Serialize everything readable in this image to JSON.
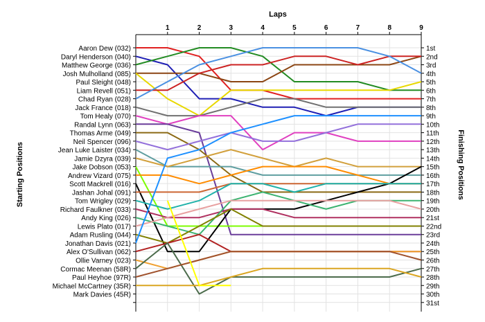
{
  "chart_data": {
    "type": "line",
    "title": "",
    "xlabel": "Laps",
    "ylabel_left": "Starting Positions",
    "ylabel_right": "Finishing Positions",
    "x": [
      0,
      1,
      2,
      3,
      4,
      5,
      6,
      7,
      8,
      9
    ],
    "x_tick_labels": [
      "1",
      "2",
      "3",
      "4",
      "5",
      "6",
      "7",
      "8",
      "9"
    ],
    "ylim": [
      1,
      31
    ],
    "y_inverted": true,
    "grid": true,
    "finish_labels": [
      "1st",
      "2nd",
      "3rd",
      "4th",
      "5th",
      "6th",
      "7th",
      "8th",
      "9th",
      "10th",
      "11th",
      "12th",
      "13th",
      "14th",
      "15th",
      "16th",
      "17th",
      "18th",
      "19th",
      "20th",
      "21st",
      "22nd",
      "23rd",
      "24th",
      "25th",
      "26th",
      "27th",
      "28th",
      "29th",
      "30th",
      "31st"
    ],
    "series": [
      {
        "name": "Aaron Dew (032)",
        "color": "#e02020",
        "values": [
          1,
          1,
          2,
          6,
          6,
          7,
          7,
          7,
          7,
          7
        ]
      },
      {
        "name": "Daryl Henderson (040)",
        "color": "#1f1fb4",
        "values": [
          2,
          3,
          7,
          7,
          8,
          8,
          9,
          8,
          8,
          8
        ]
      },
      {
        "name": "Matthew George (036)",
        "color": "#228b22",
        "values": [
          3,
          2,
          1,
          1,
          2,
          5,
          5,
          5,
          6,
          6
        ]
      },
      {
        "name": "Josh Mulholland (085)",
        "color": "#8b4513",
        "values": [
          4,
          4,
          4,
          5,
          5,
          3,
          3,
          3,
          3,
          2
        ]
      },
      {
        "name": "Paul Sleight (048)",
        "color": "#e8d800",
        "values": [
          4,
          7,
          9,
          6,
          6,
          6,
          6,
          6,
          6,
          5
        ]
      },
      {
        "name": "Liam Revell (051)",
        "color": "#cc2222",
        "values": [
          6,
          6,
          4,
          3,
          3,
          2,
          2,
          3,
          2,
          2
        ]
      },
      {
        "name": "Chad Ryan (028)",
        "color": "#4a90e2",
        "values": [
          7,
          5,
          3,
          2,
          1,
          1,
          1,
          1,
          2,
          4
        ]
      },
      {
        "name": "Jack France (018)",
        "color": "#707070",
        "values": [
          8,
          9,
          9,
          8,
          7,
          7,
          8,
          8,
          8,
          8
        ]
      },
      {
        "name": "Tom Healy (070)",
        "color": "#e040c0",
        "values": [
          9,
          10,
          9,
          9,
          13,
          11,
          11,
          12,
          12,
          12
        ]
      },
      {
        "name": "Randal Lynn (063)",
        "color": "#6a3d9a",
        "values": [
          10,
          10,
          11,
          23,
          23,
          23,
          23,
          23,
          23,
          23
        ]
      },
      {
        "name": "Thomas Arme (049)",
        "color": "#8b6914",
        "values": [
          11,
          11,
          13,
          16,
          18,
          18,
          18,
          18,
          18,
          18
        ]
      },
      {
        "name": "Neil Spencer (096)",
        "color": "#9370db",
        "values": [
          12,
          13,
          12,
          11,
          12,
          12,
          11,
          10,
          10,
          10
        ]
      },
      {
        "name": "Jean Luke Laister (034)",
        "color": "#5f9ea0",
        "values": [
          13,
          15,
          15,
          15,
          16,
          16,
          16,
          16,
          16,
          16
        ]
      },
      {
        "name": "Jamie Dzyra (039)",
        "color": "#d2a03c",
        "values": [
          14,
          15,
          14,
          13,
          14,
          15,
          14,
          15,
          15,
          15
        ]
      },
      {
        "name": "Jake Dobson (053)",
        "color": "#7cfc00",
        "values": [
          15,
          22,
          22,
          22,
          22,
          22,
          22,
          22,
          22,
          22
        ]
      },
      {
        "name": "Andrew Vizard (075)",
        "color": "#ff8c00",
        "values": [
          16,
          16,
          17,
          16,
          15,
          15,
          15,
          16,
          17,
          17
        ]
      },
      {
        "name": "Scott Mackrell (016)",
        "color": "#000000",
        "values": [
          17,
          25,
          25,
          20,
          20,
          20,
          19,
          18,
          17,
          15
        ]
      },
      {
        "name": "Jashan Johal (091)",
        "color": "#cc6633",
        "values": [
          18,
          18,
          18,
          17,
          17,
          17,
          17,
          17,
          17,
          17
        ]
      },
      {
        "name": "Tom Wrigley (029)",
        "color": "#20b2aa",
        "values": [
          19,
          20,
          19,
          17,
          17,
          18,
          17,
          17,
          17,
          17
        ]
      },
      {
        "name": "Richard Faulkner (033)",
        "color": "#b03060",
        "values": [
          20,
          21,
          21,
          20,
          20,
          21,
          21,
          21,
          21,
          21
        ]
      },
      {
        "name": "Andy King (026)",
        "color": "#3cb371",
        "values": [
          21,
          22,
          23,
          19,
          18,
          19,
          20,
          19,
          19,
          19
        ]
      },
      {
        "name": "Lewis Plato (017)",
        "color": "#e8a0a0",
        "values": [
          22,
          21,
          20,
          19,
          19,
          19,
          19,
          19,
          19,
          20
        ]
      },
      {
        "name": "Adam Rusling (044)",
        "color": "#808000",
        "values": [
          23,
          24,
          22,
          20,
          22,
          22,
          22,
          22,
          22,
          22
        ]
      },
      {
        "name": "Jonathan Davis (021)",
        "color": "#1e90ff",
        "values": [
          24,
          14,
          13,
          11,
          10,
          9,
          9,
          9,
          9,
          9
        ]
      },
      {
        "name": "Alex O'Sullivan (062)",
        "color": "#b22222",
        "values": [
          25,
          24,
          23,
          25,
          25,
          25,
          25,
          25,
          25,
          25
        ]
      },
      {
        "name": "Ollie Varney (023)",
        "color": "#f0a030",
        "values": [
          26,
          27,
          26,
          25,
          25,
          25,
          25,
          25,
          25,
          25
        ]
      },
      {
        "name": "Cormac Meenan (58R)",
        "color": "#4b6b4b",
        "values": [
          27,
          24,
          30,
          28,
          28,
          28,
          28,
          28,
          28,
          27
        ]
      },
      {
        "name": "Paul Heyhoe (97R)",
        "color": "#a0522d",
        "values": [
          28,
          27,
          26,
          25,
          25,
          25,
          25,
          25,
          25,
          26
        ]
      },
      {
        "name": "Michael McCartney (35R)",
        "color": "#daa520",
        "values": [
          29,
          29,
          29,
          28,
          27,
          27,
          27,
          27,
          27,
          28
        ]
      },
      {
        "name": "Mark Davies (45R)",
        "color": "#ffff00",
        "values": [
          null,
          19,
          29,
          29,
          null,
          null,
          null,
          null,
          null,
          null
        ]
      }
    ]
  }
}
